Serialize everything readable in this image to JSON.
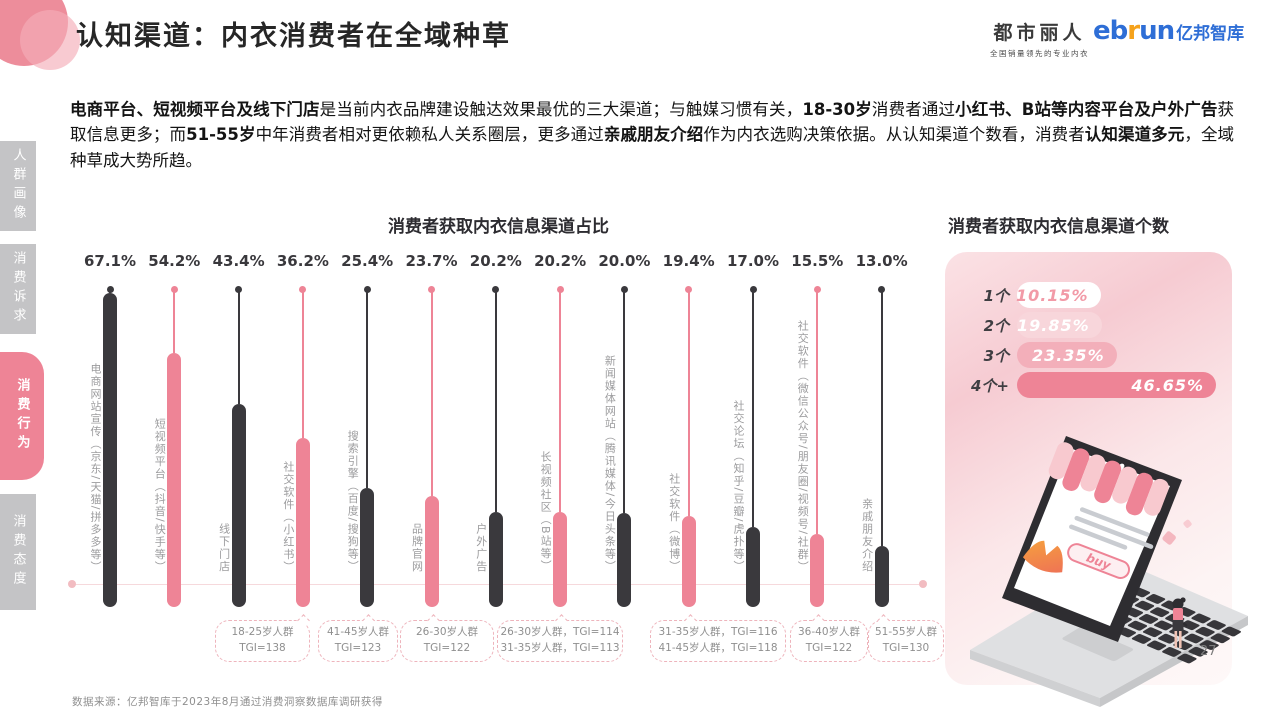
{
  "header": {
    "title": "认知渠道：内衣消费者在全域种草"
  },
  "logos": {
    "dushi": {
      "name": "都市丽人",
      "tagline": "全国销量领先的专业内衣"
    },
    "ebrun": {
      "part1": "eb",
      "part2": "r",
      "part3": "un",
      "cn": "亿邦智库"
    }
  },
  "intro": {
    "segments": [
      {
        "text": "电商平台、短视频平台及线下门店",
        "bold": true
      },
      {
        "text": "是当前内衣品牌建设触达效果最优的三大渠道；与触媒习惯有关，",
        "bold": false
      },
      {
        "text": "18-30岁",
        "bold": true
      },
      {
        "text": "消费者通过",
        "bold": false
      },
      {
        "text": "小红书、B站等内容平台及户外广告",
        "bold": true
      },
      {
        "text": "获取信息更多；而",
        "bold": false
      },
      {
        "text": "51-55岁",
        "bold": true
      },
      {
        "text": "中年消费者相对更依赖私人关系圈层，更多通过",
        "bold": false
      },
      {
        "text": "亲戚朋友介绍",
        "bold": true
      },
      {
        "text": "作为内衣选购决策依据。从认知渠道个数看，消费者",
        "bold": false
      },
      {
        "text": "认知渠道多元",
        "bold": true
      },
      {
        "text": "，全域种草成大势所趋。",
        "bold": false
      }
    ]
  },
  "sidebar": {
    "items": [
      {
        "label": "人群画像",
        "active": false
      },
      {
        "label": "消费诉求",
        "active": false
      },
      {
        "label": "消费行为",
        "active": true
      },
      {
        "label": "消费态度",
        "active": false
      }
    ]
  },
  "chart_data": [
    {
      "type": "bar",
      "title": "消费者获取内衣信息渠道占比",
      "unit": "%",
      "ylim": [
        0,
        70
      ],
      "grid": false,
      "legend": false,
      "categories": [
        "电商网站宣传（京东/天猫/拼多多等）",
        "短视频平台（抖音/快手等）",
        "线下门店",
        "社交软件（小红书）",
        "搜索引擎（百度/搜狗等）",
        "品牌官网",
        "户外广告",
        "长视频社区（B站等）",
        "新闻媒体网站（腾讯媒体/今日头条等）",
        "社交软件（微博）",
        "社交论坛（知乎/豆瓣/虎扑等）",
        "社交软件（微信公众号/朋友圈/视频号/社群）",
        "亲戚朋友介绍"
      ],
      "values": [
        67.1,
        54.2,
        43.4,
        36.2,
        25.4,
        23.7,
        20.2,
        20.2,
        20.0,
        19.4,
        17.0,
        15.5,
        13.0
      ],
      "bar_color_pattern": "alternating dark/pink starting dark",
      "annotations": [
        {
          "lines": [
            "18-25岁人群",
            "TGI=138"
          ],
          "target_index": 3
        },
        {
          "lines": [
            "41-45岁人群",
            "TGI=123"
          ],
          "target_index": 4
        },
        {
          "lines": [
            "26-30岁人群",
            "TGI=122"
          ],
          "target_index": 5
        },
        {
          "lines": [
            "26-30岁人群，TGI=114",
            "31-35岁人群，TGI=113"
          ],
          "target_index": 7
        },
        {
          "lines": [
            "31-35岁人群，TGI=116",
            "41-45岁人群，TGI=118"
          ],
          "target_index": 9
        },
        {
          "lines": [
            "36-40岁人群",
            "TGI=122"
          ],
          "target_index": 11
        },
        {
          "lines": [
            "51-55岁人群",
            "TGI=130"
          ],
          "target_index": 12
        }
      ]
    },
    {
      "type": "bar",
      "title": "消费者获取内衣信息渠道个数",
      "unit": "%",
      "orientation": "horizontal",
      "categories": [
        "1个",
        "2个",
        "3个",
        "4个+"
      ],
      "values": [
        10.15,
        19.85,
        23.35,
        46.65
      ]
    }
  ],
  "illustration": {
    "buy_label": "buy"
  },
  "footer": {
    "source": "数据来源：亿邦智库于2023年8月通过消费洞察数据库调研获得",
    "page": "27"
  },
  "colors": {
    "pink": "#ee8496",
    "dark": "#3a393d",
    "label_gray": "#9c9c9e",
    "sidebar_gray": "#c4c4c6",
    "logo_blue": "#2e6ed6",
    "logo_orange": "#f5a21b",
    "count_bar_fills": [
      "#ffffff",
      "#f8d6db",
      "#f3afba",
      "#ee8496"
    ],
    "count_bar_text": [
      "#f29aa7",
      "#ffffff",
      "#ffffff",
      "#ffffff"
    ]
  }
}
